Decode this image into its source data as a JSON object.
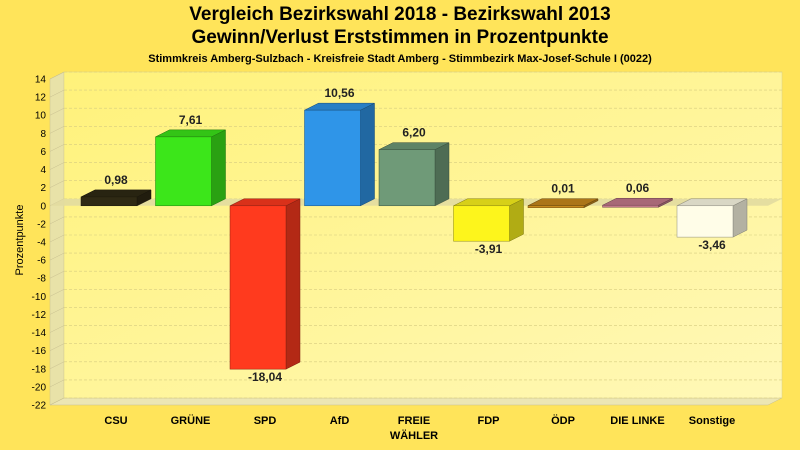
{
  "chart_data": {
    "type": "bar",
    "title": "Vergleich Bezirkswahl 2018 - Bezirkswahl 2013",
    "subtitle": "Gewinn/Verlust Erststimmen in Prozentpunkte",
    "caption": "Stimmkreis Amberg-Sulzbach - Kreisfreie Stadt Amberg - Stimmbezirk Max-Josef-Schule I (0022)",
    "ylabel": "Prozentpunkte",
    "xlabel": "",
    "ylim": [
      -22,
      14
    ],
    "yticks": [
      14,
      12,
      10,
      8,
      6,
      4,
      2,
      0,
      -2,
      -4,
      -6,
      -8,
      -10,
      -12,
      -14,
      -16,
      -18,
      -20,
      -22
    ],
    "grid": true,
    "categories": [
      {
        "label": "CSU",
        "label2": ""
      },
      {
        "label": "GRÜNE",
        "label2": ""
      },
      {
        "label": "SPD",
        "label2": ""
      },
      {
        "label": "AfD",
        "label2": ""
      },
      {
        "label": "FREIE",
        "label2": "WÄHLER"
      },
      {
        "label": "FDP",
        "label2": ""
      },
      {
        "label": "ÖDP",
        "label2": ""
      },
      {
        "label": "DIE LINKE",
        "label2": ""
      },
      {
        "label": "Sonstige",
        "label2": ""
      }
    ],
    "values": [
      0.98,
      7.61,
      -18.04,
      10.56,
      6.2,
      -3.91,
      0.01,
      0.06,
      -3.46
    ],
    "value_labels": [
      "0,98",
      "7,61",
      "-18,04",
      "10,56",
      "6,20",
      "-3,91",
      "0,01",
      "0,06",
      "-3,46"
    ],
    "colors": [
      "#2f2a14",
      "#3ce61a",
      "#ff3a1e",
      "#2f95e8",
      "#6f9a78",
      "#fdf51c",
      "#c98a1c",
      "#c47a8c",
      "#fffde8"
    ]
  }
}
